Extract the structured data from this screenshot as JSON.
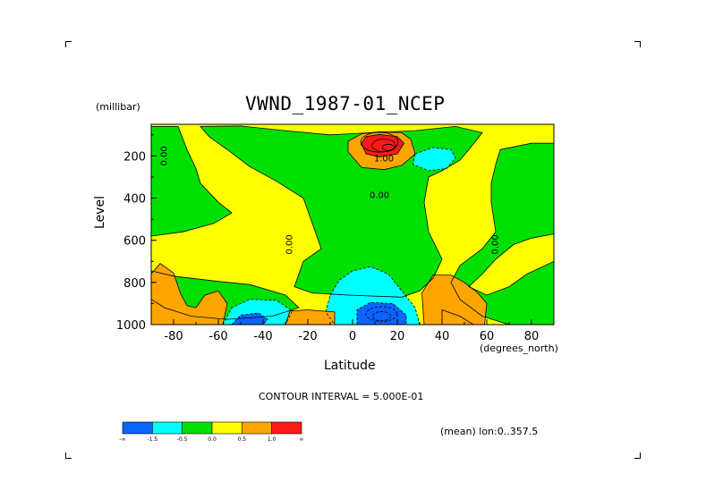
{
  "chart_data": {
    "type": "heatmap",
    "title": "VWND_1987-01_NCEP",
    "xlabel": "Latitude",
    "x_units": "(degrees_north)",
    "ylabel": "Level",
    "y_units": "(millibar)",
    "xlim": [
      -90,
      90
    ],
    "ylim": [
      1000,
      50
    ],
    "x_ticks": [
      -80,
      -60,
      -40,
      -20,
      0,
      20,
      40,
      60,
      80
    ],
    "x_tick_labels": [
      "-80",
      "-60",
      "-40",
      "-20",
      "0",
      "20",
      "40",
      "60",
      "80"
    ],
    "y_ticks": [
      200,
      400,
      600,
      800,
      1000
    ],
    "y_tick_labels": [
      "200",
      "400",
      "600",
      "800",
      "1000"
    ],
    "contour_interval_text": "CONTOUR INTERVAL = 5.000E-01",
    "footer_text": "(mean) lon:0..357.5",
    "contour_labels": [
      "0.00",
      "1.00",
      "0.00",
      "0.00",
      "0.00"
    ],
    "levels": [
      -1.5,
      -0.5,
      0.0,
      0.5,
      1.0
    ],
    "colorbar": {
      "colors": [
        "#0a64ff",
        "#00ffff",
        "#00e000",
        "#ffff00",
        "#ffa500",
        "#ff1a1a"
      ],
      "labels": [
        "-∞",
        "-1.5",
        "-0.5",
        "0.0",
        "0.5",
        "1.0",
        "∞"
      ]
    },
    "background_color": "#ffff00",
    "regions": [
      {
        "value": 0.0,
        "color": "#00e000",
        "points": [
          [
            -90,
            60
          ],
          [
            -78,
            60
          ],
          [
            -74,
            170
          ],
          [
            -70,
            260
          ],
          [
            -68,
            330
          ],
          [
            -60,
            420
          ],
          [
            -54,
            470
          ],
          [
            -62,
            520
          ],
          [
            -76,
            560
          ],
          [
            -90,
            580
          ]
        ]
      },
      {
        "value": 0.0,
        "color": "#00e000",
        "points": [
          [
            -68,
            60
          ],
          [
            -50,
            58
          ],
          [
            -30,
            80
          ],
          [
            -10,
            100
          ],
          [
            8,
            90
          ],
          [
            28,
            80
          ],
          [
            46,
            60
          ],
          [
            58,
            90
          ],
          [
            52,
            170
          ],
          [
            48,
            220
          ],
          [
            40,
            270
          ],
          [
            34,
            300
          ],
          [
            32,
            420
          ],
          [
            34,
            560
          ],
          [
            40,
            690
          ],
          [
            36,
            780
          ],
          [
            30,
            840
          ],
          [
            22,
            870
          ],
          [
            -2,
            860
          ],
          [
            -18,
            850
          ],
          [
            -26,
            820
          ],
          [
            -22,
            700
          ],
          [
            -14,
            640
          ],
          [
            -18,
            520
          ],
          [
            -22,
            400
          ],
          [
            -34,
            320
          ],
          [
            -46,
            250
          ],
          [
            -56,
            170
          ],
          [
            -64,
            110
          ]
        ]
      },
      {
        "value": 0.0,
        "color": "#00e000",
        "points": [
          [
            -90,
            745
          ],
          [
            -80,
            770
          ],
          [
            -60,
            795
          ],
          [
            -46,
            810
          ],
          [
            -30,
            860
          ],
          [
            -24,
            920
          ],
          [
            -36,
            960
          ],
          [
            -56,
            975
          ],
          [
            -72,
            960
          ],
          [
            -84,
            920
          ],
          [
            -90,
            880
          ]
        ]
      },
      {
        "value": 0.0,
        "color": "#00e000",
        "points": [
          [
            66,
            170
          ],
          [
            80,
            140
          ],
          [
            90,
            140
          ],
          [
            90,
            570
          ],
          [
            80,
            590
          ],
          [
            72,
            620
          ],
          [
            64,
            690
          ],
          [
            58,
            760
          ],
          [
            52,
            820
          ],
          [
            60,
            860
          ],
          [
            70,
            820
          ],
          [
            78,
            760
          ],
          [
            86,
            720
          ],
          [
            90,
            700
          ],
          [
            90,
            1000
          ],
          [
            70,
            1000
          ],
          [
            58,
            960
          ],
          [
            48,
            880
          ],
          [
            44,
            800
          ],
          [
            48,
            720
          ],
          [
            58,
            640
          ],
          [
            64,
            560
          ],
          [
            62,
            420
          ],
          [
            62,
            330
          ],
          [
            64,
            240
          ]
        ]
      },
      {
        "value": 0.0,
        "color": "#00e000",
        "points": [
          [
            40,
            930
          ],
          [
            48,
            960
          ],
          [
            54,
            1000
          ],
          [
            40,
            1000
          ]
        ]
      },
      {
        "value": -0.5,
        "color": "#00ffff",
        "points": [
          [
            28,
            190
          ],
          [
            36,
            160
          ],
          [
            44,
            170
          ],
          [
            46,
            210
          ],
          [
            42,
            260
          ],
          [
            34,
            270
          ],
          [
            27,
            240
          ]
        ]
      },
      {
        "value": -0.5,
        "color": "#00ffff",
        "points": [
          [
            -10,
            860
          ],
          [
            -6,
            790
          ],
          [
            0,
            745
          ],
          [
            8,
            725
          ],
          [
            16,
            760
          ],
          [
            22,
            840
          ],
          [
            28,
            920
          ],
          [
            30,
            1000
          ],
          [
            -8,
            1000
          ],
          [
            -12,
            940
          ]
        ]
      },
      {
        "value": -0.5,
        "color": "#00ffff",
        "points": [
          [
            -58,
            1000
          ],
          [
            -54,
            920
          ],
          [
            -46,
            880
          ],
          [
            -34,
            885
          ],
          [
            -27,
            935
          ],
          [
            -30,
            1000
          ]
        ]
      },
      {
        "value": -1.5,
        "color": "#0a64ff",
        "points": [
          [
            2,
            1000
          ],
          [
            2,
            930
          ],
          [
            8,
            895
          ],
          [
            18,
            900
          ],
          [
            24,
            955
          ],
          [
            24,
            1000
          ]
        ]
      },
      {
        "value": -1.5,
        "color": "#0a64ff",
        "points": [
          [
            -54,
            1000
          ],
          [
            -50,
            955
          ],
          [
            -42,
            945
          ],
          [
            -38,
            975
          ],
          [
            -40,
            1000
          ]
        ]
      },
      {
        "value": 0.5,
        "color": "#ffa500",
        "points": [
          [
            -2,
            180
          ],
          [
            -2,
            130
          ],
          [
            4,
            95
          ],
          [
            12,
            85
          ],
          [
            22,
            90
          ],
          [
            26,
            120
          ],
          [
            28,
            190
          ],
          [
            22,
            245
          ],
          [
            14,
            265
          ],
          [
            4,
            255
          ]
        ]
      },
      {
        "value": 0.5,
        "color": "#ffa500",
        "points": [
          [
            -90,
            1000
          ],
          [
            -90,
            760
          ],
          [
            -86,
            710
          ],
          [
            -80,
            755
          ],
          [
            -77,
            850
          ],
          [
            -74,
            910
          ],
          [
            -70,
            920
          ],
          [
            -66,
            860
          ],
          [
            -60,
            840
          ],
          [
            -56,
            900
          ],
          [
            -58,
            1000
          ]
        ]
      },
      {
        "value": 0.5,
        "color": "#ffa500",
        "points": [
          [
            -30,
            1000
          ],
          [
            -28,
            935
          ],
          [
            -20,
            930
          ],
          [
            -8,
            940
          ],
          [
            -8,
            1000
          ]
        ]
      },
      {
        "value": 0.5,
        "color": "#ffa500",
        "points": [
          [
            32,
            1000
          ],
          [
            31,
            850
          ],
          [
            36,
            765
          ],
          [
            44,
            765
          ],
          [
            50,
            800
          ],
          [
            56,
            850
          ],
          [
            60,
            900
          ],
          [
            59,
            1000
          ]
        ]
      },
      {
        "value": 1.0,
        "color": "#ff1a1a",
        "points": [
          [
            4,
            140
          ],
          [
            6,
            108
          ],
          [
            12,
            98
          ],
          [
            20,
            108
          ],
          [
            23,
            140
          ],
          [
            20,
            190
          ],
          [
            12,
            205
          ],
          [
            6,
            190
          ]
        ]
      }
    ]
  }
}
